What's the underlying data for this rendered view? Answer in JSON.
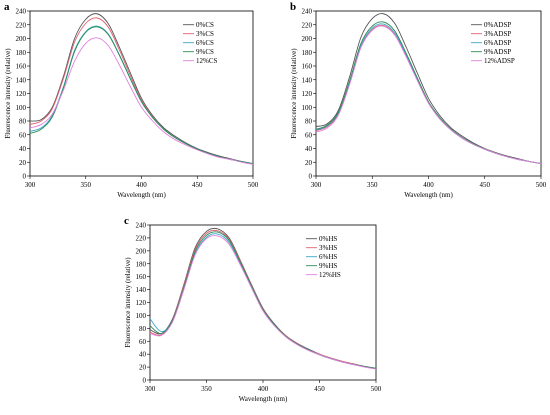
{
  "chart_data": [
    {
      "type": "line",
      "panel": "a",
      "xlabel": "Wavelength (nm)",
      "ylabel": "Fluorescence intensity (relative)",
      "xlim": [
        300,
        500
      ],
      "ylim": [
        0,
        240
      ],
      "xticks": [
        300,
        350,
        400,
        450,
        500
      ],
      "yticks": [
        0,
        20,
        40,
        60,
        80,
        100,
        120,
        140,
        160,
        180,
        200,
        220,
        240
      ],
      "legend_position": "top-right",
      "x": [
        300,
        310,
        320,
        330,
        340,
        350,
        360,
        370,
        380,
        390,
        400,
        410,
        420,
        430,
        440,
        450,
        460,
        470,
        480,
        490,
        500
      ],
      "series": [
        {
          "name": "0%CS",
          "color": "#555555",
          "values": [
            80,
            82,
            100,
            145,
            200,
            228,
            236,
            222,
            188,
            150,
            113,
            88,
            70,
            58,
            48,
            40,
            34,
            29,
            25,
            21,
            18
          ]
        },
        {
          "name": "3%CS",
          "color": "#e06070",
          "values": [
            75,
            80,
            98,
            142,
            195,
            222,
            230,
            217,
            184,
            146,
            110,
            86,
            68,
            56,
            47,
            39,
            33,
            28,
            24,
            21,
            18
          ]
        },
        {
          "name": "6%CS",
          "color": "#3aa9c8",
          "values": [
            65,
            70,
            88,
            130,
            183,
            210,
            218,
            207,
            177,
            142,
            108,
            85,
            68,
            56,
            47,
            39,
            33,
            28,
            24,
            21,
            18
          ]
        },
        {
          "name": "9%CS",
          "color": "#2e8b57",
          "values": [
            62,
            68,
            86,
            128,
            181,
            209,
            217,
            206,
            176,
            141,
            108,
            85,
            68,
            56,
            47,
            39,
            33,
            28,
            24,
            21,
            18
          ]
        },
        {
          "name": "12%CS",
          "color": "#e080e0",
          "values": [
            70,
            75,
            90,
            125,
            167,
            193,
            201,
            190,
            162,
            130,
            100,
            80,
            64,
            53,
            45,
            38,
            32,
            27,
            24,
            20,
            17
          ]
        }
      ]
    },
    {
      "type": "line",
      "panel": "b",
      "xlabel": "Wavelength (nm)",
      "ylabel": "Fluorescence intensity (relative)",
      "xlim": [
        300,
        500
      ],
      "ylim": [
        0,
        240
      ],
      "xticks": [
        300,
        350,
        400,
        450,
        500
      ],
      "yticks": [
        0,
        20,
        40,
        60,
        80,
        100,
        120,
        140,
        160,
        180,
        200,
        220,
        240
      ],
      "legend_position": "top-right",
      "x": [
        300,
        310,
        320,
        330,
        340,
        350,
        360,
        370,
        380,
        390,
        400,
        410,
        420,
        430,
        440,
        450,
        460,
        470,
        480,
        490,
        500
      ],
      "series": [
        {
          "name": "0%ADSP",
          "color": "#555555",
          "values": [
            72,
            76,
            96,
            145,
            202,
            229,
            236,
            222,
            188,
            150,
            113,
            88,
            70,
            58,
            48,
            40,
            34,
            29,
            25,
            21,
            18
          ]
        },
        {
          "name": "3%ADSP",
          "color": "#e06070",
          "values": [
            66,
            72,
            90,
            135,
            189,
            213,
            219,
            206,
            175,
            140,
            106,
            84,
            67,
            55,
            46,
            39,
            33,
            28,
            24,
            21,
            18
          ]
        },
        {
          "name": "6%ADSP",
          "color": "#3aa9c8",
          "values": [
            67,
            73,
            92,
            137,
            190,
            215,
            221,
            208,
            177,
            141,
            107,
            84,
            67,
            55,
            46,
            39,
            33,
            28,
            24,
            21,
            18
          ]
        },
        {
          "name": "9%ADSP",
          "color": "#2e8b57",
          "values": [
            68,
            74,
            93,
            139,
            193,
            218,
            224,
            211,
            179,
            143,
            108,
            85,
            68,
            56,
            47,
            39,
            33,
            28,
            24,
            21,
            18
          ]
        },
        {
          "name": "12%ADSP",
          "color": "#e080e0",
          "values": [
            64,
            70,
            89,
            134,
            187,
            212,
            218,
            205,
            174,
            139,
            106,
            83,
            67,
            55,
            46,
            39,
            33,
            28,
            24,
            21,
            18
          ]
        }
      ]
    },
    {
      "type": "line",
      "panel": "c",
      "xlabel": "Wavelength (nm)",
      "ylabel": "Fluorescence intensity (relative)",
      "xlim": [
        300,
        500
      ],
      "ylim": [
        0,
        240
      ],
      "xticks": [
        300,
        350,
        400,
        450,
        500
      ],
      "yticks": [
        0,
        20,
        40,
        60,
        80,
        100,
        120,
        140,
        160,
        180,
        200,
        220,
        240
      ],
      "legend_position": "top-right",
      "x": [
        300,
        310,
        320,
        330,
        340,
        350,
        360,
        370,
        380,
        390,
        400,
        410,
        420,
        430,
        440,
        450,
        460,
        470,
        480,
        490,
        500
      ],
      "series": [
        {
          "name": "0%HS",
          "color": "#555555",
          "values": [
            78,
            72,
            95,
            148,
            205,
            230,
            234,
            220,
            185,
            147,
            111,
            87,
            69,
            57,
            48,
            40,
            34,
            29,
            25,
            21,
            18
          ]
        },
        {
          "name": "3%HS",
          "color": "#e06070",
          "values": [
            74,
            70,
            93,
            146,
            202,
            227,
            231,
            218,
            184,
            146,
            110,
            86,
            69,
            57,
            47,
            40,
            34,
            29,
            25,
            21,
            18
          ]
        },
        {
          "name": "6%HS",
          "color": "#3aa9c8",
          "values": [
            95,
            75,
            92,
            142,
            196,
            221,
            226,
            213,
            180,
            143,
            108,
            85,
            68,
            56,
            47,
            39,
            33,
            28,
            24,
            21,
            18
          ]
        },
        {
          "name": "9%HS",
          "color": "#2e8b57",
          "values": [
            84,
            72,
            92,
            143,
            199,
            224,
            229,
            216,
            182,
            145,
            109,
            86,
            68,
            56,
            47,
            39,
            33,
            28,
            24,
            21,
            18
          ]
        },
        {
          "name": "12%HS",
          "color": "#e080e0",
          "values": [
            72,
            69,
            90,
            140,
            194,
            219,
            223,
            210,
            178,
            142,
            107,
            84,
            67,
            55,
            46,
            39,
            33,
            28,
            24,
            20,
            17
          ]
        }
      ]
    }
  ]
}
